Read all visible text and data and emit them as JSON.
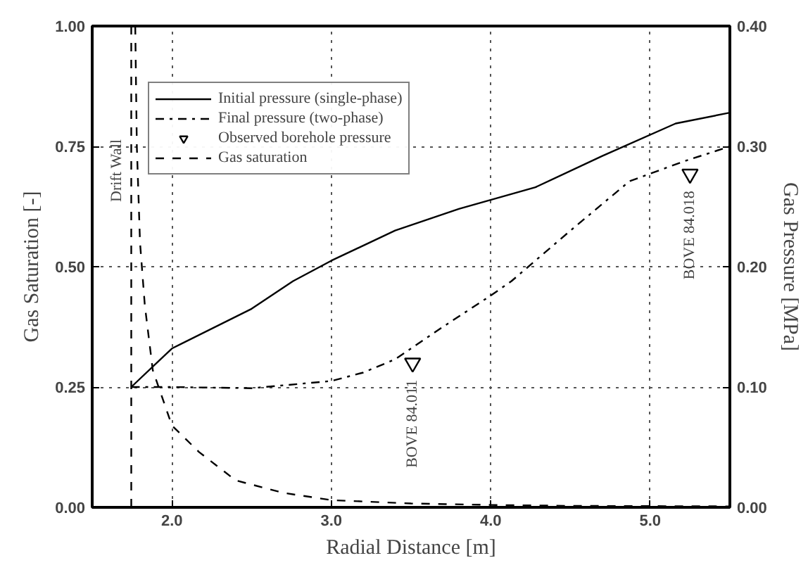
{
  "chart_data": {
    "type": "line",
    "xlabel": "Radial Distance [m]",
    "ylabel": "Gas Saturation [-]",
    "y2label": "Gas Pressure [MPa]",
    "xlim": [
      1.5,
      5.5
    ],
    "xticks": [
      {
        "value": 2,
        "label": "2.0"
      },
      {
        "value": 3,
        "label": "3.0"
      },
      {
        "value": 4,
        "label": "4.0"
      },
      {
        "value": 5,
        "label": "5.0"
      }
    ],
    "ylim": [
      0,
      1
    ],
    "yticks": [
      {
        "value": 0,
        "label": "0.00"
      },
      {
        "value": 0.25,
        "label": "0.25"
      },
      {
        "value": 0.5,
        "label": "0.50"
      },
      {
        "value": 0.75,
        "label": "0.75"
      },
      {
        "value": 1,
        "label": "1.00"
      }
    ],
    "y2lim": [
      0,
      0.4
    ],
    "y2ticks": [
      {
        "value": 0,
        "label": "0.00"
      },
      {
        "value": 0.1,
        "label": "0.10"
      },
      {
        "value": 0.2,
        "label": "0.20"
      },
      {
        "value": 0.3,
        "label": "0.30"
      },
      {
        "value": 0.4,
        "label": "0.40"
      }
    ],
    "grid": true,
    "legend": "top left",
    "series": [
      {
        "name": "Initial pressure (single-phase)",
        "color": "#000000",
        "axis": "y2",
        "line_style": "solid",
        "x": [
          1.745,
          2.0,
          2.5,
          2.76,
          3.0,
          3.4,
          3.8,
          4.28,
          4.7,
          5.16,
          5.5
        ],
        "values": [
          0.1,
          0.132,
          0.165,
          0.188,
          0.205,
          0.23,
          0.248,
          0.266,
          0.292,
          0.319,
          0.328
        ]
      },
      {
        "name": "Final pressure (two-phase)",
        "color": "#000000",
        "axis": "y2",
        "line_style": "dashdot",
        "x": [
          1.745,
          2.0,
          2.5,
          3.0,
          3.2,
          3.4,
          3.7,
          4.0,
          4.13,
          4.5,
          4.87,
          5.2,
          5.5
        ],
        "values": [
          0.1,
          0.1,
          0.099,
          0.105,
          0.112,
          0.123,
          0.15,
          0.176,
          0.188,
          0.23,
          0.271,
          0.287,
          0.3
        ]
      },
      {
        "name": "Observed borehole pressure",
        "type": "scatter",
        "marker": "triangle",
        "color": "#000000",
        "axis": "y2",
        "x": [
          3.51,
          5.25
        ],
        "values": [
          0.12,
          0.277
        ]
      },
      {
        "name": "Gas saturation",
        "color": "#000000",
        "line_style": "dashed",
        "x": [
          1.77,
          1.78,
          1.8,
          1.83,
          1.88,
          2.0,
          2.17,
          2.4,
          2.7,
          3.0,
          3.5,
          4.0,
          4.5,
          5.5
        ],
        "values": [
          1.0,
          0.75,
          0.55,
          0.42,
          0.285,
          0.17,
          0.115,
          0.056,
          0.03,
          0.015,
          0.008,
          0.005,
          0.003,
          0.002
        ]
      }
    ],
    "ref_lines": [
      {
        "axis": "x",
        "value": 1.745,
        "label": "Drift Wall",
        "color": "#000000",
        "line_style": "dashed"
      }
    ],
    "annotations": [
      "BOVE 84.011",
      "BOVE 84.018"
    ]
  }
}
